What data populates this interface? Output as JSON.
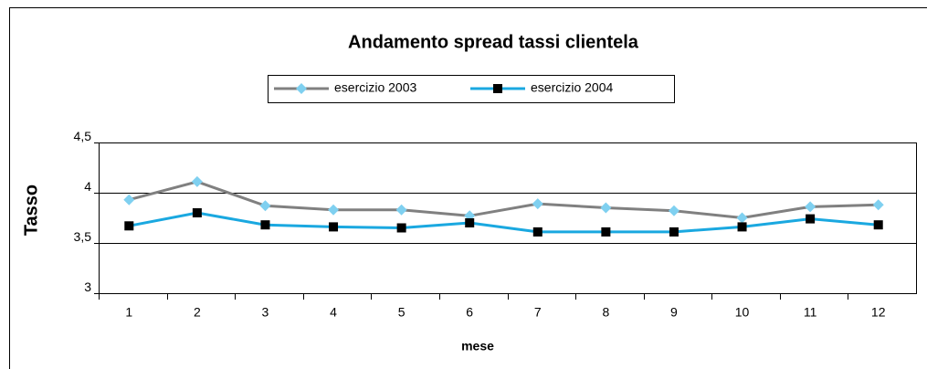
{
  "chart_data": {
    "type": "line",
    "title": "Andamento spread tassi clientela",
    "x_label": "mese",
    "y_label": "Tasso",
    "categories": [
      "1",
      "2",
      "3",
      "4",
      "5",
      "6",
      "7",
      "8",
      "9",
      "10",
      "11",
      "12"
    ],
    "series": [
      {
        "name": "esercizio 2003",
        "color": "#808080",
        "marker": "diamond",
        "marker_color": "#7fd0f0",
        "values": [
          3.93,
          4.11,
          3.87,
          3.83,
          3.83,
          3.77,
          3.89,
          3.85,
          3.82,
          3.75,
          3.86,
          3.88
        ]
      },
      {
        "name": "esercizio 2004",
        "color": "#1aa8e0",
        "marker": "square",
        "marker_color": "#000000",
        "values": [
          3.67,
          3.8,
          3.68,
          3.66,
          3.65,
          3.7,
          3.61,
          3.61,
          3.61,
          3.66,
          3.74,
          3.68
        ]
      }
    ],
    "ylim": [
      3,
      4.5
    ],
    "yticks": [
      3,
      {
        "value": 3.5,
        "label": "3,5"
      },
      4,
      {
        "value": 4.5,
        "label": "4,5"
      }
    ],
    "grid": true,
    "legend": "top"
  }
}
